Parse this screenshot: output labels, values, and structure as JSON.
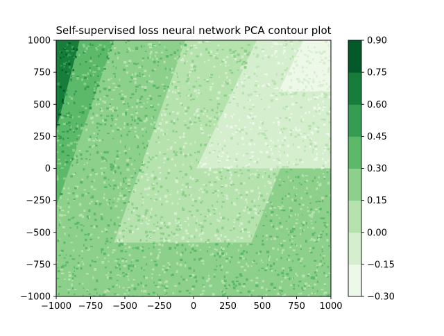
{
  "chart_data": {
    "type": "heatmap",
    "subtype": "filled-contour",
    "title": "Self-supervised loss neural network PCA contour plot",
    "xlabel": "",
    "ylabel": "",
    "xlim": [
      -1000,
      1000
    ],
    "ylim": [
      -1000,
      1000
    ],
    "x_ticks": [
      -1000,
      -750,
      -500,
      -250,
      0,
      250,
      500,
      750,
      1000
    ],
    "y_ticks": [
      -1000,
      -750,
      -500,
      -250,
      0,
      250,
      500,
      750,
      1000
    ],
    "x_tick_labels": [
      "−1000",
      "−750",
      "−500",
      "−250",
      "0",
      "250",
      "500",
      "750",
      "1000"
    ],
    "y_tick_labels": [
      "−1000",
      "−750",
      "−500",
      "−250",
      "0",
      "250",
      "500",
      "750",
      "1000"
    ],
    "colorbar": {
      "levels": [
        -0.3,
        -0.15,
        0.0,
        0.15,
        0.3,
        0.45,
        0.6,
        0.75,
        0.9
      ],
      "tick_labels": [
        "−0.30",
        "−0.15",
        "0.00",
        "0.15",
        "0.30",
        "0.45",
        "0.60",
        "0.75",
        "0.90"
      ],
      "colors": [
        "#edf8e9",
        "#d4eece",
        "#b6e2ae",
        "#8cd08b",
        "#5db96a",
        "#359d52",
        "#177d3b",
        "#02592a"
      ]
    },
    "grid": false,
    "regions": [
      {
        "description": "bottom band",
        "level_index": 3,
        "polygon": [
          [
            -1000,
            -1000
          ],
          [
            1000,
            -1000
          ],
          [
            1000,
            -550
          ],
          [
            -1000,
            -550
          ]
        ]
      },
      {
        "description": "left wedge",
        "level_index": 4,
        "polygon": [
          [
            -1000,
            -300
          ],
          [
            -580,
            1000
          ],
          [
            -1000,
            1000
          ]
        ]
      },
      {
        "description": "top-left core",
        "level_index": 6,
        "polygon": [
          [
            -1000,
            300
          ],
          [
            -830,
            1000
          ],
          [
            -1000,
            1000
          ]
        ]
      },
      {
        "description": "central parallelogram",
        "level_index": 2,
        "polygon": [
          [
            -580,
            -580
          ],
          [
            420,
            -580
          ],
          [
            1000,
            1000
          ],
          [
            -60,
            1000
          ]
        ]
      },
      {
        "description": "right wedge",
        "level_index": 1,
        "polygon": [
          [
            20,
            0
          ],
          [
            1000,
            0
          ],
          [
            1000,
            1000
          ],
          [
            460,
            1000
          ]
        ]
      },
      {
        "description": "top-right corner",
        "level_index": 0,
        "polygon": [
          [
            620,
            600
          ],
          [
            1000,
            600
          ],
          [
            1000,
            1000
          ],
          [
            800,
            1000
          ]
        ]
      }
    ]
  }
}
